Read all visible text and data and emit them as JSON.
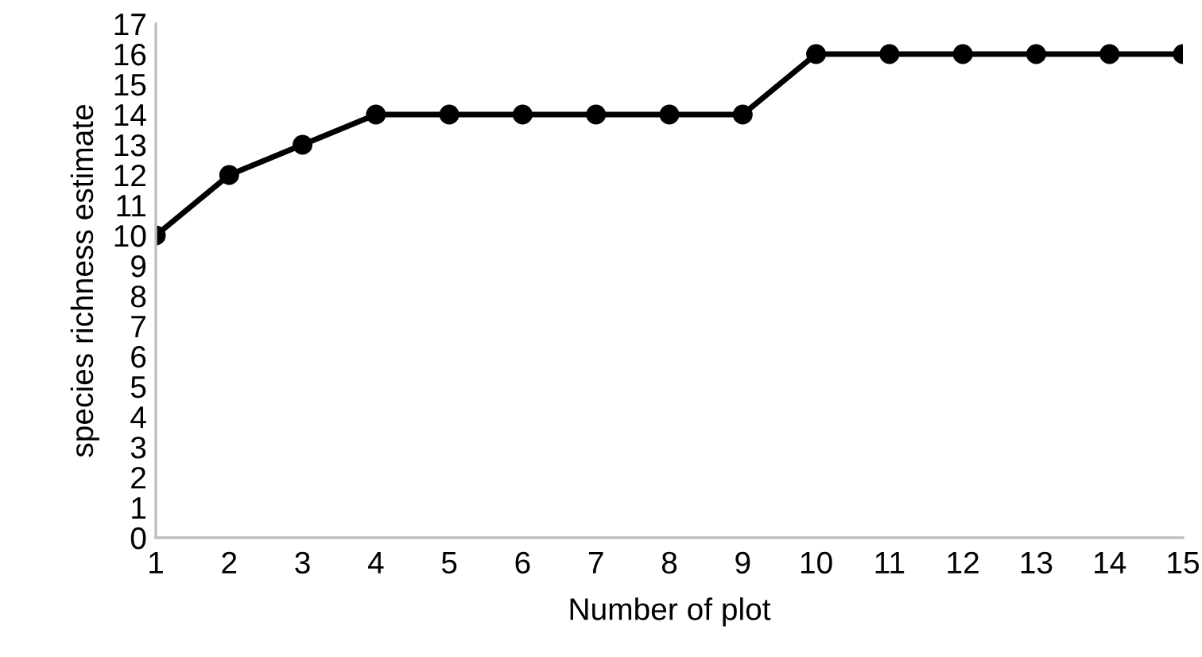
{
  "chart_data": {
    "type": "line",
    "xlabel": "Number of plot",
    "ylabel": "species richness estimate",
    "categories": [
      "1",
      "2",
      "3",
      "4",
      "5",
      "6",
      "7",
      "8",
      "9",
      "10",
      "11",
      "12",
      "13",
      "14",
      "15"
    ],
    "series": [
      {
        "color": "#000000",
        "values": [
          10,
          12,
          13,
          14,
          14,
          14,
          14,
          14,
          14,
          16,
          16,
          16,
          16,
          16,
          16
        ]
      }
    ],
    "ylim": [
      0,
      17
    ],
    "yticks": [
      0,
      1,
      2,
      3,
      4,
      5,
      6,
      7,
      8,
      9,
      10,
      11,
      12,
      13,
      14,
      15,
      16,
      17
    ],
    "marker": "circle",
    "line_style": "solid",
    "grid": false,
    "legend": false
  }
}
